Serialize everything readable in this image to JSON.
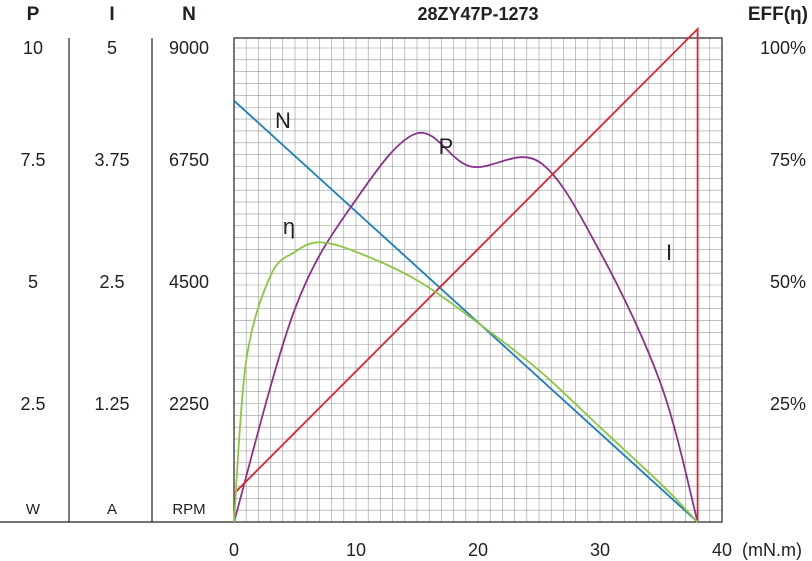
{
  "chart_data": {
    "type": "line",
    "title": "28ZY47P-1273",
    "xlabel": "(mN.m)",
    "x_ticks": [
      "0",
      "10",
      "20",
      "30",
      "40"
    ],
    "xlim": [
      0,
      40
    ],
    "left_axes": [
      {
        "header": "P",
        "ticks": [
          "10",
          "7.5",
          "5",
          "2.5"
        ],
        "unit": "W"
      },
      {
        "header": "I",
        "ticks": [
          "5",
          "3.75",
          "2.5",
          "1.25"
        ],
        "unit": "A"
      },
      {
        "header": "N",
        "ticks": [
          "9000",
          "6750",
          "4500",
          "2250"
        ],
        "unit": "RPM"
      }
    ],
    "right_axis": {
      "header": "EFF(η)",
      "ticks": [
        "100%",
        "75%",
        "50%",
        "25%"
      ]
    },
    "grid": true,
    "series": [
      {
        "name": "N",
        "color": "#1a7fc0",
        "axis": "N",
        "x": [
          0,
          38
        ],
        "y": [
          8000,
          0
        ]
      },
      {
        "name": "P",
        "color": "#8c2f8f",
        "axis": "P",
        "x": [
          0,
          5,
          10,
          15,
          19.4,
          25,
          30,
          35,
          38
        ],
        "y": [
          0,
          4.5,
          6.8,
          8.2,
          7.5,
          7.6,
          5.7,
          2.9,
          0
        ]
      },
      {
        "name": "I",
        "color": "#e0232b",
        "axis": "I",
        "x": [
          0,
          38,
          38
        ],
        "y": [
          0.3,
          5.2,
          0
        ]
      },
      {
        "name": "η",
        "color": "#8dc63f",
        "axis": "EFF",
        "x": [
          0,
          1,
          3,
          5,
          7,
          10,
          15,
          20,
          25,
          30,
          35,
          38
        ],
        "y": [
          0,
          34,
          52,
          57,
          59,
          57,
          51,
          42,
          32,
          20,
          8,
          0
        ]
      }
    ],
    "series_labels": [
      "N",
      "P",
      "I",
      "η"
    ]
  }
}
